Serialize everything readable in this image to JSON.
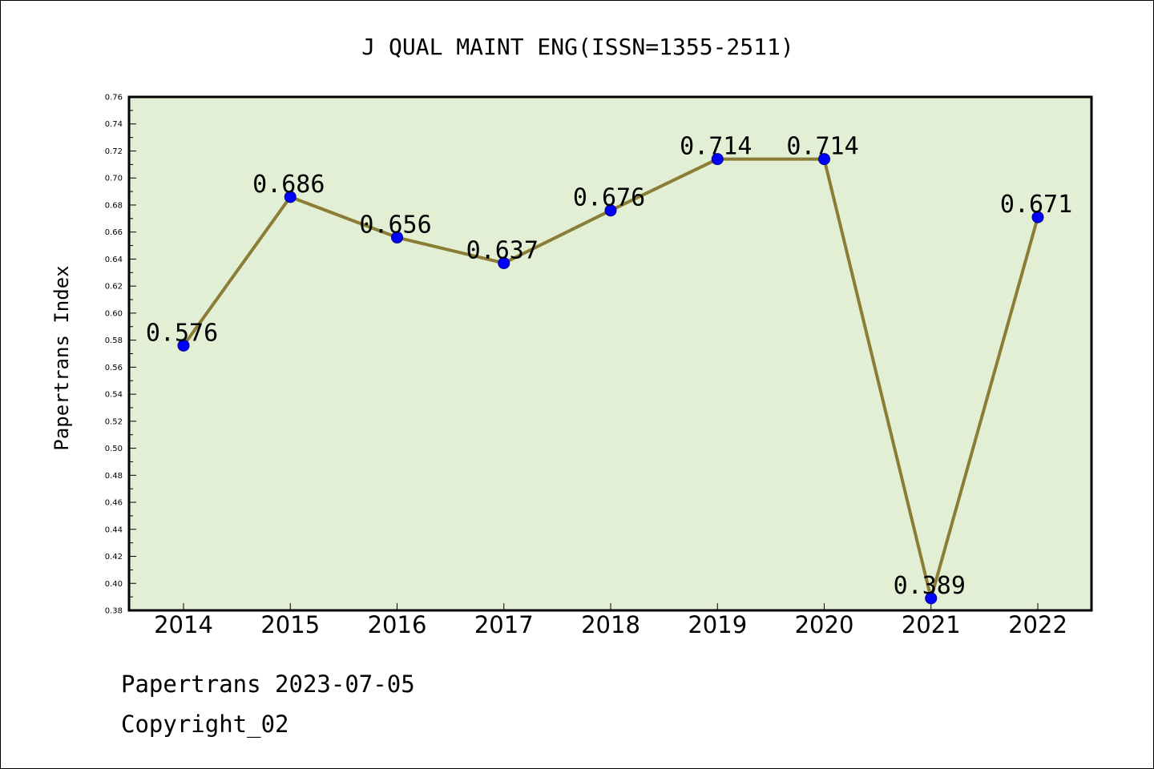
{
  "chart_data": {
    "type": "line",
    "title": "J QUAL MAINT ENG(ISSN=1355-2511)",
    "xlabel": "",
    "ylabel": "Papertrans Index",
    "categories": [
      "2014",
      "2015",
      "2016",
      "2017",
      "2018",
      "2019",
      "2020",
      "2021",
      "2022"
    ],
    "series": [
      {
        "values": [
          0.576,
          0.686,
          0.656,
          0.637,
          0.676,
          0.714,
          0.714,
          0.389,
          0.671
        ],
        "labels": [
          "0.576",
          "0.686",
          "0.656",
          "0.637",
          "0.676",
          "0.714",
          "0.714",
          "0.389",
          "0.671"
        ]
      }
    ],
    "ylim": [
      0.38,
      0.76
    ],
    "yticks": [
      "0.38",
      "0.40",
      "0.42",
      "0.44",
      "0.46",
      "0.48",
      "0.50",
      "0.52",
      "0.54",
      "0.56",
      "0.58",
      "0.60",
      "0.62",
      "0.64",
      "0.66",
      "0.68",
      "0.70",
      "0.72",
      "0.74",
      "0.76"
    ],
    "grid": false,
    "legend": "none"
  },
  "colors": {
    "plot_background": "#e2efd5",
    "line": "#8b7d35",
    "marker": "#0000ff",
    "axis": "#000000"
  },
  "footer": {
    "date_line": "Papertrans 2023-07-05",
    "copyright_line": "Copyright_02"
  }
}
